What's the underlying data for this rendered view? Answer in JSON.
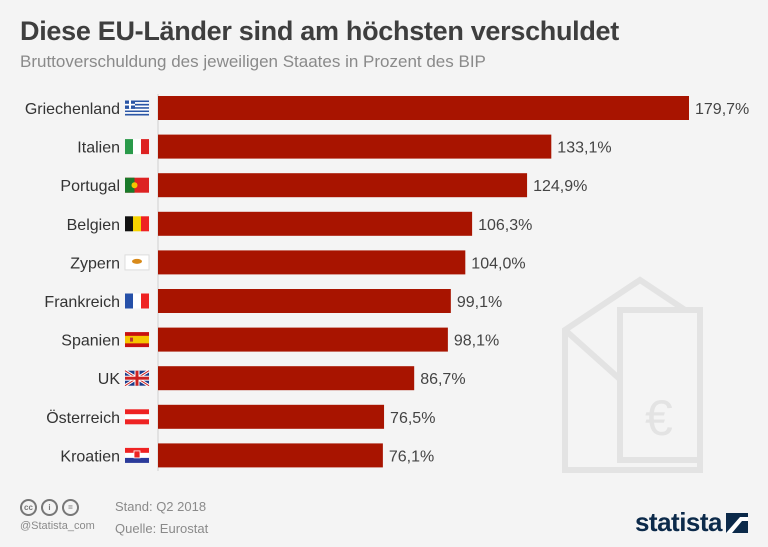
{
  "title": "Diese EU-Länder sind am höchsten verschuldet",
  "subtitle": "Bruttoverschuldung des jeweiligen Staates in Prozent des BIP",
  "chart_data": {
    "type": "bar",
    "orientation": "horizontal",
    "categories": [
      "Griechenland",
      "Italien",
      "Portugal",
      "Belgien",
      "Zypern",
      "Frankreich",
      "Spanien",
      "UK",
      "Österreich",
      "Kroatien"
    ],
    "values": [
      179.7,
      133.1,
      124.9,
      106.3,
      104.0,
      99.1,
      98.1,
      86.7,
      76.5,
      76.1
    ],
    "data_labels": [
      "179,7%",
      "133,1%",
      "124,9%",
      "106,3%",
      "104,0%",
      "99,1%",
      "98,1%",
      "86,7%",
      "76,5%",
      "76,1%"
    ],
    "flags": [
      "greece-flag",
      "italy-flag",
      "portugal-flag",
      "belgium-flag",
      "cyprus-flag",
      "france-flag",
      "spain-flag",
      "uk-flag",
      "austria-flag",
      "croatia-flag"
    ],
    "bar_color": "#a81400",
    "xlim": [
      0,
      180
    ],
    "grid": false
  },
  "footer": {
    "stand": "Stand: Q2 2018",
    "quelle": "Quelle: Eurostat",
    "handle": "@Statista_com",
    "logo": "statista"
  }
}
